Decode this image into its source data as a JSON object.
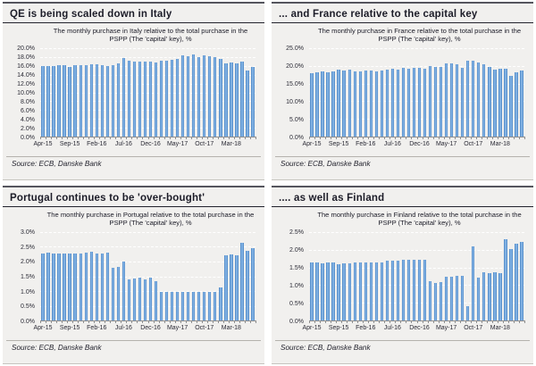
{
  "colors": {
    "bar_edge": "#4d84c0",
    "bar_center": "#93bfea",
    "panel_background": "#f1f0ee",
    "header_text": "#1c1c28",
    "axis_line": "#8f8f8f"
  },
  "chart_data": [
    {
      "type": "bar",
      "header": "QE is being scaled down in Italy",
      "title": "The monthly purchase in Italy relative to the total purchase in the PSPP (The 'capital' key), %",
      "source": "Source: ECB, Danske Bank",
      "xlabel": "",
      "ylabel": "",
      "ylim": [
        0,
        20
      ],
      "grid": true,
      "legend": "none",
      "yticks": [
        0,
        2,
        4,
        6,
        8,
        10,
        12,
        14,
        16,
        18,
        20
      ],
      "ytick_labels": [
        "0.0%",
        "2.0%",
        "4.0%",
        "6.0%",
        "8.0%",
        "10.0%",
        "12.0%",
        "14.0%",
        "16.0%",
        "18.0%",
        "20.0%"
      ],
      "xtick_every": 5,
      "categories": [
        "Apr-15",
        "May-15",
        "Jun-15",
        "Jul-15",
        "Aug-15",
        "Sep-15",
        "Oct-15",
        "Nov-15",
        "Dec-15",
        "Jan-16",
        "Feb-16",
        "Mar-16",
        "Apr-16",
        "May-16",
        "Jun-16",
        "Jul-16",
        "Aug-16",
        "Sep-16",
        "Oct-16",
        "Nov-16",
        "Dec-16",
        "Jan-17",
        "Feb-17",
        "Mar-17",
        "Apr-17",
        "May-17",
        "Jun-17",
        "Jul-17",
        "Aug-17",
        "Sep-17",
        "Oct-17",
        "Nov-17",
        "Dec-17",
        "Jan-18",
        "Feb-18",
        "Mar-18",
        "Apr-18",
        "May-18",
        "Jun-18",
        "Jul-18"
      ],
      "values": [
        16.0,
        16.0,
        15.9,
        16.1,
        16.2,
        15.7,
        16.2,
        16.1,
        16.1,
        16.3,
        16.3,
        16.2,
        16.0,
        16.2,
        16.6,
        17.8,
        17.1,
        17.0,
        16.9,
        17.0,
        16.9,
        16.7,
        17.1,
        17.2,
        17.3,
        17.6,
        18.4,
        18.1,
        18.6,
        17.9,
        18.3,
        18.2,
        18.0,
        17.5,
        16.5,
        16.8,
        16.5,
        16.9,
        15.0,
        15.8
      ]
    },
    {
      "type": "bar",
      "header": "... and France relative to the capital key",
      "title": "The monthly purchase in France relative to the total purchase in the PSPP (The 'capital' key), %",
      "source": "Source: ECB, Danske Bank",
      "xlabel": "",
      "ylabel": "",
      "ylim": [
        0,
        25
      ],
      "grid": true,
      "legend": "none",
      "yticks": [
        0,
        5,
        10,
        15,
        20,
        25
      ],
      "ytick_labels": [
        "0.0%",
        "5.0%",
        "10.0%",
        "15.0%",
        "20.0%",
        "25.0%"
      ],
      "xtick_every": 5,
      "categories": [
        "Apr-15",
        "May-15",
        "Jun-15",
        "Jul-15",
        "Aug-15",
        "Sep-15",
        "Oct-15",
        "Nov-15",
        "Dec-15",
        "Jan-16",
        "Feb-16",
        "Mar-16",
        "Apr-16",
        "May-16",
        "Jun-16",
        "Jul-16",
        "Aug-16",
        "Sep-16",
        "Oct-16",
        "Nov-16",
        "Dec-16",
        "Jan-17",
        "Feb-17",
        "Mar-17",
        "Apr-17",
        "May-17",
        "Jun-17",
        "Jul-17",
        "Aug-17",
        "Sep-17",
        "Oct-17",
        "Nov-17",
        "Dec-17",
        "Jan-18",
        "Feb-18",
        "Mar-18",
        "Apr-18",
        "May-18",
        "Jun-18",
        "Jul-18"
      ],
      "values": [
        18.0,
        18.3,
        18.5,
        18.3,
        18.4,
        18.9,
        18.6,
        19.0,
        18.5,
        18.5,
        18.8,
        18.6,
        18.4,
        18.6,
        19.0,
        19.3,
        18.9,
        19.4,
        19.2,
        19.4,
        19.4,
        19.3,
        19.9,
        19.8,
        19.6,
        20.6,
        20.7,
        20.5,
        19.4,
        21.4,
        21.5,
        20.9,
        20.4,
        19.8,
        19.0,
        19.1,
        19.3,
        17.1,
        18.2,
        18.7
      ]
    },
    {
      "type": "bar",
      "header": "Portugal continues to be 'over-bought'",
      "title": "The monthly purchase in Portugal relative to the total purchase in the PSPP (The 'capital' key), %",
      "source": "Source: ECB, Danske Bank",
      "xlabel": "",
      "ylabel": "",
      "ylim": [
        0,
        3
      ],
      "grid": true,
      "legend": "none",
      "yticks": [
        0,
        0.5,
        1.0,
        1.5,
        2.0,
        2.5,
        3.0
      ],
      "ytick_labels": [
        "0.0%",
        "0.5%",
        "1.0%",
        "1.5%",
        "2.0%",
        "2.5%",
        "3.0%"
      ],
      "xtick_every": 5,
      "categories": [
        "Apr-15",
        "May-15",
        "Jun-15",
        "Jul-15",
        "Aug-15",
        "Sep-15",
        "Oct-15",
        "Nov-15",
        "Dec-15",
        "Jan-16",
        "Feb-16",
        "Mar-16",
        "Apr-16",
        "May-16",
        "Jun-16",
        "Jul-16",
        "Aug-16",
        "Sep-16",
        "Oct-16",
        "Nov-16",
        "Dec-16",
        "Jan-17",
        "Feb-17",
        "Mar-17",
        "Apr-17",
        "May-17",
        "Jun-17",
        "Jul-17",
        "Aug-17",
        "Sep-17",
        "Oct-17",
        "Nov-17",
        "Dec-17",
        "Jan-18",
        "Feb-18",
        "Mar-18",
        "Apr-18",
        "May-18",
        "Jun-18",
        "Jul-18"
      ],
      "values": [
        2.28,
        2.3,
        2.27,
        2.27,
        2.28,
        2.27,
        2.28,
        2.28,
        2.3,
        2.32,
        2.28,
        2.28,
        2.3,
        1.8,
        1.83,
        2.01,
        1.38,
        1.43,
        1.47,
        1.4,
        1.47,
        1.32,
        0.98,
        0.98,
        0.97,
        0.98,
        0.98,
        0.98,
        0.97,
        0.98,
        0.98,
        0.97,
        0.98,
        1.12,
        2.2,
        2.25,
        2.22,
        2.63,
        2.35,
        2.47
      ]
    },
    {
      "type": "bar",
      "header": ".... as well as Finland",
      "title": "The monthly purchase in Finland relative to the total purchase in the PSPP (The 'capital' key), %",
      "source": "Source: ECB, Danske Bank",
      "xlabel": "",
      "ylabel": "",
      "ylim": [
        0,
        2.5
      ],
      "grid": true,
      "legend": "none",
      "yticks": [
        0,
        0.5,
        1.0,
        1.5,
        2.0,
        2.5
      ],
      "ytick_labels": [
        "0.0%",
        "0.5%",
        "1.0%",
        "1.5%",
        "2.0%",
        "2.5%"
      ],
      "xtick_every": 5,
      "categories": [
        "Apr-15",
        "May-15",
        "Jun-15",
        "Jul-15",
        "Aug-15",
        "Sep-15",
        "Oct-15",
        "Nov-15",
        "Dec-15",
        "Jan-16",
        "Feb-16",
        "Mar-16",
        "Apr-16",
        "May-16",
        "Jun-16",
        "Jul-16",
        "Aug-16",
        "Sep-16",
        "Oct-16",
        "Nov-16",
        "Dec-16",
        "Jan-17",
        "Feb-17",
        "Mar-17",
        "Apr-17",
        "May-17",
        "Jun-17",
        "Jul-17",
        "Aug-17",
        "Sep-17",
        "Oct-17",
        "Nov-17",
        "Dec-17",
        "Jan-18",
        "Feb-18",
        "Mar-18",
        "Apr-18",
        "May-18",
        "Jun-18",
        "Jul-18"
      ],
      "values": [
        1.63,
        1.63,
        1.62,
        1.63,
        1.65,
        1.58,
        1.62,
        1.62,
        1.63,
        1.65,
        1.65,
        1.63,
        1.63,
        1.65,
        1.68,
        1.7,
        1.7,
        1.72,
        1.72,
        1.72,
        1.72,
        1.71,
        1.1,
        1.07,
        1.08,
        1.25,
        1.25,
        1.27,
        1.27,
        0.4,
        2.1,
        1.2,
        1.37,
        1.35,
        1.37,
        1.35,
        2.3,
        2.02,
        2.17,
        2.23
      ]
    }
  ]
}
